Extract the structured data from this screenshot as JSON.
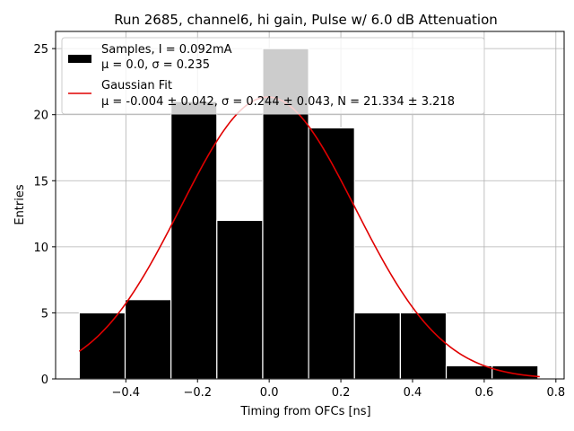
{
  "chart_data": {
    "type": "bar",
    "title": "Run 2685, channel6, hi gain, Pulse w/ 6.0 dB Attenuation",
    "xlabel": "Timing from OFCs [ns]",
    "ylabel": "Entries",
    "xlim": [
      -0.596,
      0.823
    ],
    "ylim": [
      0,
      26.3
    ],
    "xticks": [
      -0.4,
      -0.2,
      0.0,
      0.2,
      0.4,
      0.6,
      0.8
    ],
    "xtick_labels": [
      "−0.4",
      "−0.2",
      "0.0",
      "0.2",
      "0.4",
      "0.6",
      "0.8"
    ],
    "yticks": [
      0,
      5,
      10,
      15,
      20,
      25
    ],
    "ytick_labels": [
      "0",
      "5",
      "10",
      "15",
      "20",
      "25"
    ],
    "grid": true,
    "histogram": {
      "name": "Samples, I = 0.092mA",
      "bin_edges": [
        -0.53,
        -0.402,
        -0.274,
        -0.146,
        -0.018,
        0.11,
        0.238,
        0.366,
        0.494,
        0.622,
        0.75
      ],
      "counts": [
        5,
        6,
        21,
        12,
        25,
        19,
        5,
        5,
        1,
        1
      ],
      "color": "#000000",
      "edge_color": "#ffffff"
    },
    "fit": {
      "name": "Gaussian Fit",
      "mu": -0.004,
      "sigma": 0.244,
      "N": 21.334,
      "x_range": [
        -0.53,
        0.755
      ],
      "color": "#e00000"
    },
    "legend": {
      "placement": "upper-left",
      "entries": [
        {
          "line1": "Samples, I = 0.092mA",
          "line2": "μ = 0.0, σ = 0.235"
        },
        {
          "line1": "Gaussian Fit",
          "line2": "μ = -0.004 ± 0.042, σ = 0.244 ± 0.043, N = 21.334 ± 3.218"
        }
      ]
    }
  }
}
